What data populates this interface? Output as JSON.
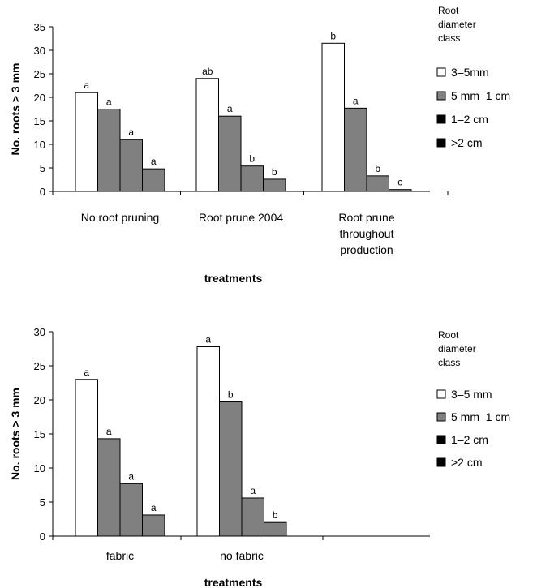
{
  "chart_data": [
    {
      "type": "bar",
      "xlabel": "treatments",
      "ylabel": "No. roots > 3 mm",
      "ylim": [
        0,
        35
      ],
      "yticks": [
        0,
        5,
        10,
        15,
        20,
        25,
        30,
        35
      ],
      "categories": [
        [
          "No root pruning"
        ],
        [
          "Root prune 2004"
        ],
        [
          "Root prune",
          "throughout",
          "production"
        ]
      ],
      "legend_title": [
        "Root",
        "diameter",
        "class"
      ],
      "legend_placement": "right",
      "series": [
        {
          "name": "3–5mm",
          "color": "#ffffff",
          "values": [
            21,
            24,
            31.5
          ],
          "labels": [
            "a",
            "ab",
            "b"
          ]
        },
        {
          "name": "5 mm–1 cm",
          "color": "#808080",
          "values": [
            17.5,
            16,
            17.7
          ],
          "labels": [
            "a",
            "a",
            "a"
          ]
        },
        {
          "name": "1–2 cm",
          "color": "#808080",
          "values": [
            11,
            5.4,
            3.3
          ],
          "labels": [
            "a",
            "b",
            "b"
          ]
        },
        {
          "name": ">2 cm",
          "color": "#808080",
          "values": [
            4.8,
            2.6,
            0.4
          ],
          "labels": [
            "a",
            "b",
            "c"
          ]
        }
      ],
      "legend_swatch_colors": [
        "#ffffff",
        "#808080",
        "#000000",
        "#000000"
      ],
      "grid": false
    },
    {
      "type": "bar",
      "xlabel": "treatments",
      "ylabel": "No. roots > 3 mm",
      "ylim": [
        0,
        30
      ],
      "yticks": [
        0,
        5,
        10,
        15,
        20,
        25,
        30
      ],
      "categories": [
        [
          "fabric"
        ],
        [
          "no fabric"
        ]
      ],
      "legend_title": [
        "Root",
        "diameter",
        "class"
      ],
      "legend_placement": "right",
      "series": [
        {
          "name": "3–5 mm",
          "color": "#ffffff",
          "values": [
            23,
            27.8
          ],
          "labels": [
            "a",
            "a"
          ]
        },
        {
          "name": "5 mm–1 cm",
          "color": "#808080",
          "values": [
            14.3,
            19.7
          ],
          "labels": [
            "a",
            "b"
          ]
        },
        {
          "name": "1–2 cm",
          "color": "#808080",
          "values": [
            7.7,
            5.6
          ],
          "labels": [
            "a",
            "a"
          ]
        },
        {
          "name": ">2 cm",
          "color": "#808080",
          "values": [
            3.1,
            2.0
          ],
          "labels": [
            "a",
            "b"
          ]
        }
      ],
      "legend_swatch_colors": [
        "#ffffff",
        "#808080",
        "#000000",
        "#000000"
      ],
      "grid": false
    }
  ]
}
